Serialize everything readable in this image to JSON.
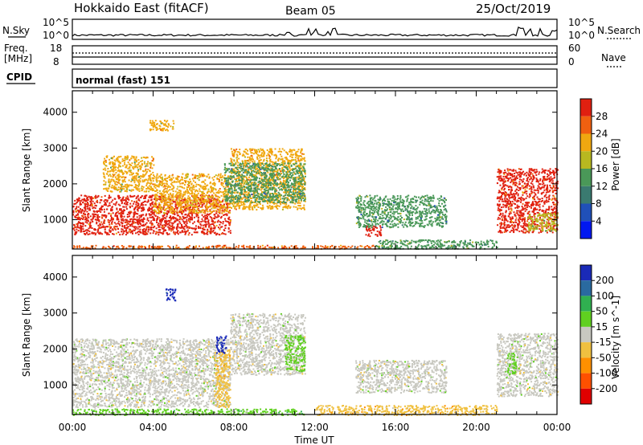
{
  "header": {
    "title": "Hokkaido East (fitACF)",
    "beam": "Beam 05",
    "date": "25/Oct/2019"
  },
  "noise_panel": {
    "left_label": "N.Sky",
    "right_label": "N.Search",
    "ticks_left": [
      "10^5",
      "10^0"
    ],
    "ticks_right": [
      "10^5",
      "10^0"
    ]
  },
  "freq_panel": {
    "left_label_1": "Freq.",
    "left_label_2": "[MHz]",
    "right_label": "Nave",
    "ticks_left": [
      "18",
      "8"
    ],
    "ticks_right": [
      "60",
      "0"
    ]
  },
  "cpid_panel": {
    "label": "CPID",
    "value": "normal (fast) 151"
  },
  "colors": {
    "power_scale": [
      "#0018f0",
      "#2050b8",
      "#3a7a70",
      "#4a9858",
      "#b8b820",
      "#f0a810",
      "#f06010",
      "#e02010"
    ],
    "velocity_scale": [
      "#e00000",
      "#ff5000",
      "#ff9000",
      "#f0c040",
      "#c8c8c0",
      "#60d020",
      "#30b050",
      "#2a6aa0",
      "#1a2ab8"
    ]
  },
  "chart_data": [
    {
      "type": "heatmap",
      "panel": "power",
      "xlabel": "",
      "ylabel": "Slant Range [km]",
      "x_range_hours": [
        0,
        24
      ],
      "ylim_km": [
        180,
        4600
      ],
      "y_ticks": [
        "1000",
        "2000",
        "3000",
        "4000"
      ],
      "colorbar": {
        "label": "Power [dB]",
        "ticks": [
          "4",
          "8",
          "12",
          "16",
          "20",
          "24",
          "28"
        ],
        "range": [
          0,
          32
        ]
      },
      "regions": [
        {
          "t": [
            0.0,
            7.8
          ],
          "r": [
            600,
            1700
          ],
          "value": 28
        },
        {
          "t": [
            0.0,
            11.5
          ],
          "r": [
            200,
            300
          ],
          "value": 26
        },
        {
          "t": [
            4.0,
            7.8
          ],
          "r": [
            1200,
            2300
          ],
          "value": 22
        },
        {
          "t": [
            1.5,
            4.0
          ],
          "r": [
            1800,
            2800
          ],
          "value": 20
        },
        {
          "t": [
            3.8,
            5.0
          ],
          "r": [
            3500,
            3800
          ],
          "value": 20
        },
        {
          "t": [
            7.8,
            11.5
          ],
          "r": [
            1300,
            3000
          ],
          "value": 22
        },
        {
          "t": [
            7.5,
            11.5
          ],
          "r": [
            1500,
            2600
          ],
          "value": 12
        },
        {
          "t": [
            11.8,
            15.0
          ],
          "r": [
            200,
            300
          ],
          "value": 24
        },
        {
          "t": [
            14.5,
            15.3
          ],
          "r": [
            550,
            850
          ],
          "value": 28
        },
        {
          "t": [
            14.0,
            18.5
          ],
          "r": [
            800,
            1700
          ],
          "value": 12
        },
        {
          "t": [
            15.0,
            21.0
          ],
          "r": [
            200,
            450
          ],
          "value": 14
        },
        {
          "t": [
            21.0,
            24.0
          ],
          "r": [
            650,
            2450
          ],
          "value": 28
        },
        {
          "t": [
            22.5,
            24.0
          ],
          "r": [
            700,
            1200
          ],
          "value": 18
        }
      ]
    },
    {
      "type": "heatmap",
      "panel": "velocity",
      "xlabel": "Time UT",
      "ylabel": "Slant Range [km]",
      "x_range_hours": [
        0,
        24
      ],
      "x_ticks": [
        "00:00",
        "04:00",
        "08:00",
        "12:00",
        "16:00",
        "20:00",
        "00:00"
      ],
      "ylim_km": [
        180,
        4600
      ],
      "y_ticks": [
        "1000",
        "2000",
        "3000",
        "4000"
      ],
      "colorbar": {
        "label": "Velocity [m s^-1]",
        "ticks": [
          "200",
          "100",
          "50",
          "15",
          "-15",
          "-50",
          "-100",
          "-200"
        ],
        "range": [
          -250,
          250
        ]
      },
      "regions": [
        {
          "t": [
            0.0,
            7.8
          ],
          "r": [
            400,
            2300
          ],
          "value": 0
        },
        {
          "t": [
            0.0,
            11.5
          ],
          "r": [
            180,
            350
          ],
          "value": 40
        },
        {
          "t": [
            7.0,
            7.8
          ],
          "r": [
            400,
            2000
          ],
          "value": -60
        },
        {
          "t": [
            7.8,
            11.5
          ],
          "r": [
            1300,
            3000
          ],
          "value": 0
        },
        {
          "t": [
            10.5,
            11.5
          ],
          "r": [
            1400,
            2400
          ],
          "value": 40
        },
        {
          "t": [
            4.6,
            5.1
          ],
          "r": [
            3350,
            3700
          ],
          "value": 220
        },
        {
          "t": [
            7.1,
            7.6
          ],
          "r": [
            1900,
            2400
          ],
          "value": 200
        },
        {
          "t": [
            14.0,
            18.5
          ],
          "r": [
            800,
            1700
          ],
          "value": 0
        },
        {
          "t": [
            12.0,
            21.0
          ],
          "r": [
            180,
            450
          ],
          "value": -70
        },
        {
          "t": [
            21.0,
            24.0
          ],
          "r": [
            700,
            2450
          ],
          "value": 0
        },
        {
          "t": [
            21.5,
            22.0
          ],
          "r": [
            1300,
            1900
          ],
          "value": 40
        }
      ]
    }
  ]
}
